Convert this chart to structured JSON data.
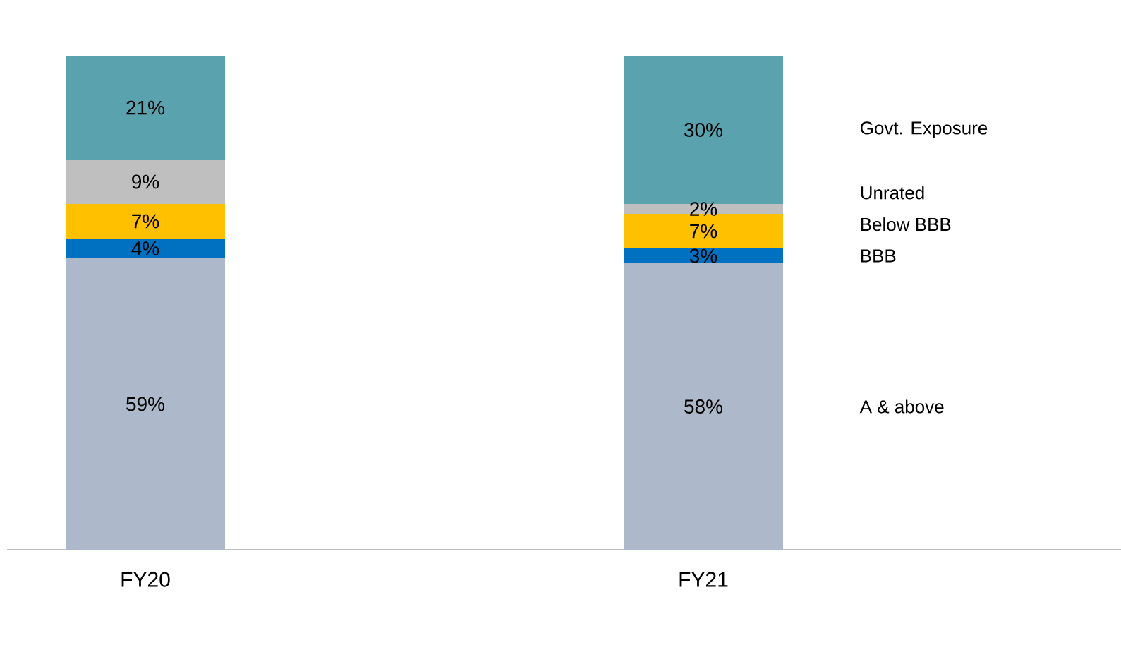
{
  "chart_data": {
    "type": "bar",
    "stacked": true,
    "categories": [
      "FY20",
      "FY21"
    ],
    "series": [
      {
        "name": "A & above",
        "color": "#adb9ca",
        "values": [
          59,
          58
        ],
        "value_labels": [
          "59%",
          "58%"
        ]
      },
      {
        "name": "BBB",
        "color": "#0070c0",
        "values": [
          4,
          3
        ],
        "value_labels": [
          "4%",
          "3%"
        ]
      },
      {
        "name": "Below BBB",
        "color": "#ffc000",
        "values": [
          7,
          7
        ],
        "value_labels": [
          "7%",
          "7%"
        ]
      },
      {
        "name": "Unrated",
        "color": "#bfbfbf",
        "values": [
          9,
          2
        ],
        "value_labels": [
          "9%",
          "2%"
        ]
      },
      {
        "name": "Govt. Exposure",
        "color": "#5aa2ae",
        "values": [
          21,
          30
        ],
        "value_labels": [
          "21%",
          "30%"
        ]
      }
    ]
  }
}
